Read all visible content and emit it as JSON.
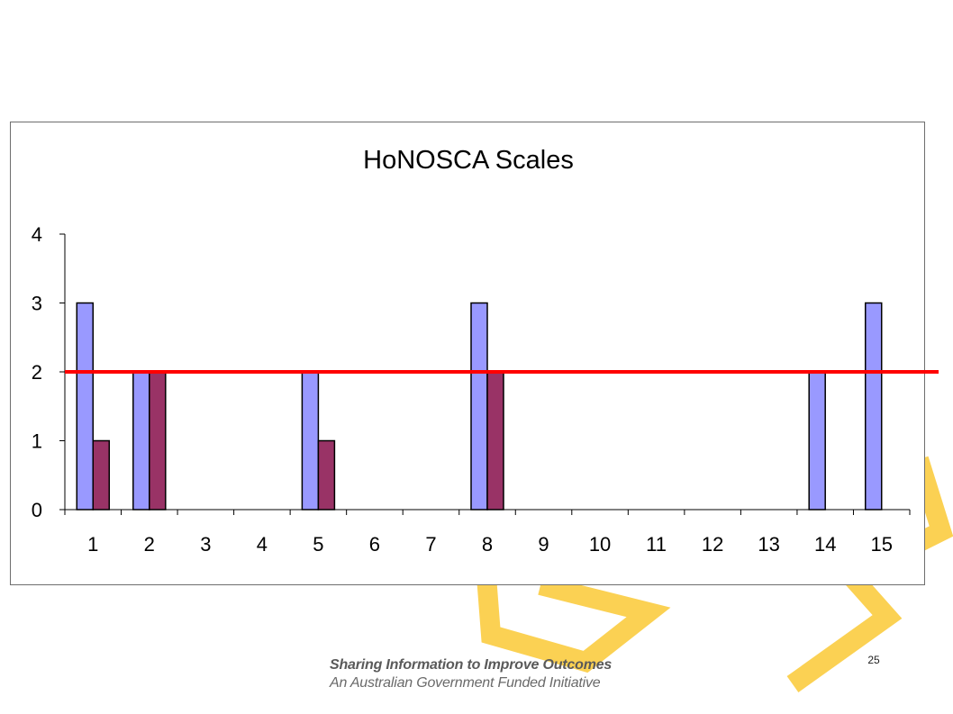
{
  "slide": {
    "page_number": "25",
    "footer_line1": "Sharing Information to Improve Outcomes",
    "footer_line2": "An Australian Government Funded Initiative",
    "accent_color": "#f9c21a"
  },
  "chart_data": {
    "type": "bar",
    "title": "HoNOSCA Scales",
    "xlabel": "",
    "ylabel": "",
    "categories": [
      "1",
      "2",
      "3",
      "4",
      "5",
      "6",
      "7",
      "8",
      "9",
      "10",
      "11",
      "12",
      "13",
      "14",
      "15"
    ],
    "series": [
      {
        "values": [
          3,
          2,
          0,
          0,
          2,
          0,
          0,
          3,
          0,
          0,
          0,
          0,
          0,
          2,
          3
        ],
        "color": "#9999ff"
      },
      {
        "values": [
          1,
          2,
          0,
          0,
          1,
          0,
          0,
          2,
          0,
          0,
          0,
          0,
          0,
          0,
          0
        ],
        "color": "#993366"
      }
    ],
    "reference_line": {
      "value": 2,
      "color": "#ff0000"
    },
    "ylim": [
      0,
      4
    ],
    "yticks": [
      "0",
      "1",
      "2",
      "3",
      "4"
    ],
    "grid": false,
    "legend": "none"
  }
}
